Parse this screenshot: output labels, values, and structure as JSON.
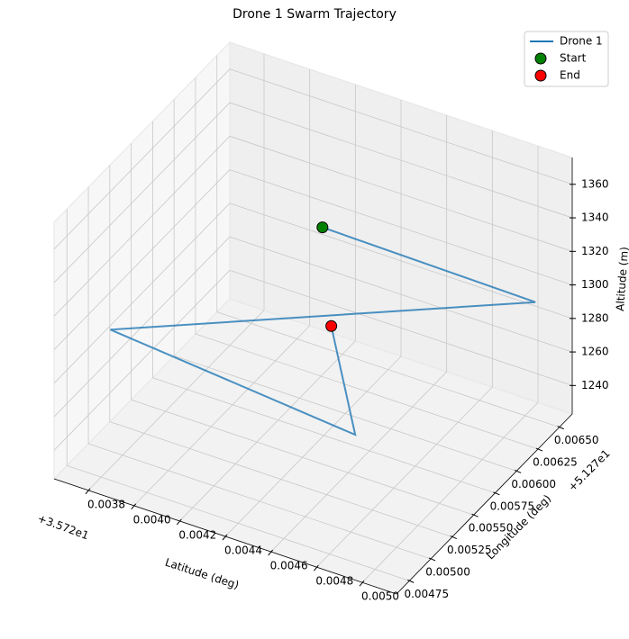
{
  "chart_data": {
    "type": "line3d",
    "title": "Drone 1 Swarm Trajectory",
    "xlabel": "Latitude (deg)",
    "ylabel": "Longitude (deg)",
    "zlabel": "Altitude (m)",
    "xoffset": "+3.572e1",
    "yoffset": "+5.127e1",
    "xlim": [
      0.00365,
      0.00515
    ],
    "ylim": [
      0.0046,
      0.00665
    ],
    "zlim": [
      1223,
      1376
    ],
    "xticks": [
      0.0038,
      {
        "value": 0.004,
        "label": "0.0040"
      },
      0.0042,
      0.0044,
      0.0046,
      0.0048,
      {
        "value": 0.005,
        "label": "0.0050"
      }
    ],
    "yticks": [
      0.00475,
      {
        "value": 0.005,
        "label": "0.00500"
      },
      0.00525,
      {
        "value": 0.0055,
        "label": "0.00550"
      },
      0.00575,
      {
        "value": 0.006,
        "label": "0.00600"
      },
      0.00625,
      {
        "value": 0.0065,
        "label": "0.00650"
      }
    ],
    "zticks": [
      1240,
      1260,
      1280,
      1300,
      1320,
      1340,
      1360
    ],
    "grid": true,
    "legend": "upper right",
    "series": [
      {
        "name": "Drone 1",
        "color": "#1f77b4",
        "x": [
          0.00433,
          0.00503,
          0.00369,
          0.00462,
          0.00438
        ],
        "y": [
          0.00592,
          0.00654,
          0.00515,
          0.00553,
          0.00589
        ],
        "z": [
          1335,
          1290,
          1285,
          1245,
          1280
        ]
      }
    ],
    "markers": [
      {
        "name": "Start",
        "color": "#008000",
        "x": 0.00433,
        "y": 0.00592,
        "z": 1335
      },
      {
        "name": "End",
        "color": "#ff0000",
        "x": 0.00438,
        "y": 0.00589,
        "z": 1280
      }
    ]
  }
}
